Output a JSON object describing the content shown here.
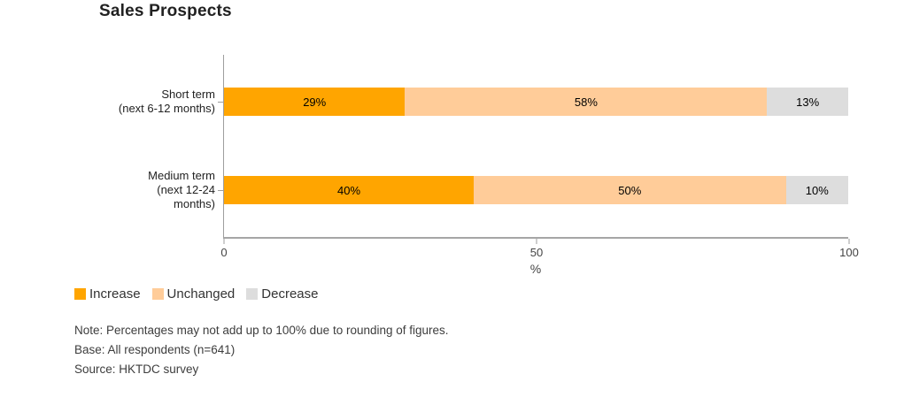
{
  "title": "Sales Prospects",
  "chart_data": {
    "type": "bar",
    "orientation": "horizontal",
    "stacked": true,
    "categories": [
      [
        "Short term",
        "(next 6-12 months)"
      ],
      [
        "Medium term",
        "(next 12-24",
        "months)"
      ]
    ],
    "series": [
      {
        "name": "Increase",
        "color": "#FFA500",
        "values": [
          29,
          40
        ]
      },
      {
        "name": "Unchanged",
        "color": "#FFCC99",
        "values": [
          58,
          50
        ]
      },
      {
        "name": "Decrease",
        "color": "#DDDDDD",
        "values": [
          13,
          10
        ]
      }
    ],
    "value_suffix": "%",
    "xlabel": "%",
    "xlim": [
      0,
      100
    ],
    "x_ticks": [
      0,
      50,
      100
    ],
    "grid": false,
    "legend_position": "bottom"
  },
  "notes": [
    "Note: Percentages may not add up to 100% due to rounding of figures.",
    "Base: All respondents (n=641)",
    "Source: HKTDC survey"
  ]
}
